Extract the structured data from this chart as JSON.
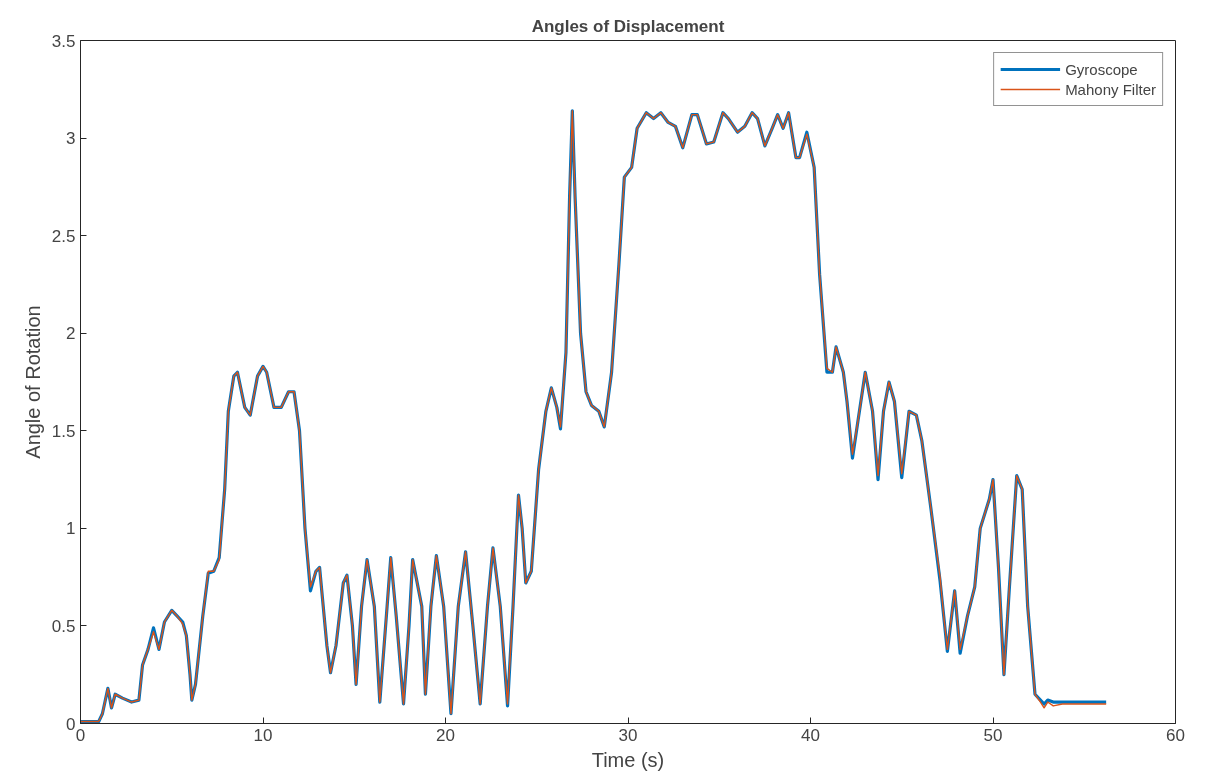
{
  "chart_data": {
    "type": "line",
    "title": "Angles of Displacement",
    "xlabel": "Time (s)",
    "ylabel": "Angle of Rotation",
    "xlim": [
      0,
      60
    ],
    "ylim": [
      0,
      3.5
    ],
    "xticks": [
      0,
      10,
      20,
      30,
      40,
      50,
      60
    ],
    "yticks": [
      0,
      0.5,
      1,
      1.5,
      2,
      2.5,
      3,
      3.5
    ],
    "grid": false,
    "legend": "top right",
    "line_style": "solid",
    "series": [
      {
        "name": "Gyroscope",
        "color": "#0072bd",
        "x": [
          0,
          1.0,
          1.2,
          1.5,
          1.7,
          1.9,
          2.3,
          2.8,
          3.2,
          3.4,
          3.7,
          4.0,
          4.3,
          4.6,
          5.0,
          5.3,
          5.6,
          5.8,
          6.0,
          6.1,
          6.3,
          6.7,
          7.0,
          7.3,
          7.6,
          7.9,
          8.1,
          8.4,
          8.6,
          9.0,
          9.3,
          9.7,
          10.0,
          10.2,
          10.6,
          11.0,
          11.4,
          11.7,
          12.0,
          12.3,
          12.6,
          12.9,
          13.1,
          13.5,
          13.7,
          14.0,
          14.4,
          14.6,
          14.9,
          15.1,
          15.4,
          15.7,
          16.1,
          16.4,
          16.8,
          17.0,
          17.3,
          17.7,
          18.0,
          18.2,
          18.7,
          18.9,
          19.2,
          19.5,
          19.9,
          20.3,
          20.7,
          21.1,
          21.5,
          21.9,
          22.3,
          22.6,
          23.0,
          23.4,
          23.7,
          24.0,
          24.2,
          24.4,
          24.7,
          25.1,
          25.5,
          25.8,
          26.1,
          26.3,
          26.6,
          26.8,
          26.95,
          27.1,
          27.4,
          27.7,
          28.0,
          28.4,
          28.7,
          29.1,
          29.5,
          29.8,
          30.2,
          30.5,
          31.0,
          31.4,
          31.8,
          32.2,
          32.6,
          33.0,
          33.5,
          33.8,
          34.3,
          34.7,
          35.2,
          35.5,
          36.0,
          36.4,
          36.8,
          37.1,
          37.5,
          37.9,
          38.2,
          38.5,
          38.8,
          39.2,
          39.4,
          39.8,
          40.2,
          40.5,
          40.9,
          41.2,
          41.4,
          41.8,
          42.0,
          42.3,
          42.6,
          43.0,
          43.4,
          43.7,
          44.0,
          44.3,
          44.6,
          45.0,
          45.4,
          45.8,
          46.1,
          46.6,
          47.1,
          47.3,
          47.5,
          47.9,
          48.2,
          48.6,
          49.0,
          49.3,
          49.8,
          50.0,
          50.3,
          50.6,
          50.9,
          51.3,
          51.6,
          51.9,
          52.3,
          52.6,
          52.8,
          53.0,
          53.3,
          53.8,
          56.2
        ],
        "values": [
          0.01,
          0.01,
          0.05,
          0.18,
          0.08,
          0.15,
          0.13,
          0.11,
          0.12,
          0.3,
          0.38,
          0.49,
          0.38,
          0.52,
          0.58,
          0.55,
          0.52,
          0.45,
          0.25,
          0.12,
          0.2,
          0.55,
          0.77,
          0.78,
          0.85,
          1.2,
          1.6,
          1.78,
          1.8,
          1.62,
          1.58,
          1.78,
          1.83,
          1.8,
          1.62,
          1.62,
          1.7,
          1.7,
          1.5,
          1.0,
          0.68,
          0.78,
          0.8,
          0.4,
          0.26,
          0.4,
          0.72,
          0.76,
          0.5,
          0.2,
          0.6,
          0.84,
          0.6,
          0.11,
          0.6,
          0.85,
          0.55,
          0.1,
          0.5,
          0.84,
          0.6,
          0.15,
          0.6,
          0.86,
          0.6,
          0.05,
          0.6,
          0.88,
          0.5,
          0.1,
          0.6,
          0.9,
          0.6,
          0.09,
          0.6,
          1.17,
          1.0,
          0.72,
          0.78,
          1.3,
          1.6,
          1.72,
          1.62,
          1.51,
          1.9,
          2.7,
          3.14,
          2.7,
          2.0,
          1.7,
          1.63,
          1.6,
          1.52,
          1.8,
          2.35,
          2.8,
          2.85,
          3.05,
          3.13,
          3.1,
          3.13,
          3.08,
          3.06,
          2.95,
          3.12,
          3.12,
          2.97,
          2.98,
          3.13,
          3.1,
          3.03,
          3.06,
          3.13,
          3.1,
          2.96,
          3.05,
          3.12,
          3.05,
          3.13,
          2.9,
          2.9,
          3.03,
          2.85,
          2.3,
          1.8,
          1.8,
          1.93,
          1.8,
          1.65,
          1.36,
          1.55,
          1.8,
          1.6,
          1.25,
          1.6,
          1.75,
          1.65,
          1.26,
          1.6,
          1.58,
          1.45,
          1.1,
          0.73,
          0.55,
          0.37,
          0.68,
          0.36,
          0.55,
          0.7,
          1.0,
          1.15,
          1.25,
          0.8,
          0.25,
          0.7,
          1.27,
          1.2,
          0.6,
          0.15,
          0.12,
          0.1,
          0.12,
          0.11,
          0.11,
          0.11
        ]
      },
      {
        "name": "Mahony Filter",
        "color": "#d95319",
        "x": [
          0,
          1.0,
          1.2,
          1.5,
          1.7,
          1.9,
          2.3,
          2.8,
          3.2,
          3.4,
          3.7,
          4.0,
          4.3,
          4.6,
          5.0,
          5.3,
          5.6,
          5.8,
          6.0,
          6.1,
          6.3,
          6.7,
          7.0,
          7.3,
          7.6,
          7.9,
          8.1,
          8.4,
          8.6,
          9.0,
          9.3,
          9.7,
          10.0,
          10.2,
          10.6,
          11.0,
          11.4,
          11.7,
          12.0,
          12.3,
          12.6,
          12.9,
          13.1,
          13.5,
          13.7,
          14.0,
          14.4,
          14.6,
          14.9,
          15.1,
          15.4,
          15.7,
          16.1,
          16.4,
          16.8,
          17.0,
          17.3,
          17.7,
          18.0,
          18.2,
          18.7,
          18.9,
          19.2,
          19.5,
          19.9,
          20.3,
          20.7,
          21.1,
          21.5,
          21.9,
          22.3,
          22.6,
          23.0,
          23.4,
          23.7,
          24.0,
          24.2,
          24.4,
          24.7,
          25.1,
          25.5,
          25.8,
          26.1,
          26.3,
          26.6,
          26.8,
          26.95,
          27.1,
          27.4,
          27.7,
          28.0,
          28.4,
          28.7,
          29.1,
          29.5,
          29.8,
          30.2,
          30.5,
          31.0,
          31.4,
          31.8,
          32.2,
          32.6,
          33.0,
          33.5,
          33.8,
          34.3,
          34.7,
          35.2,
          35.5,
          36.0,
          36.4,
          36.8,
          37.1,
          37.5,
          37.9,
          38.2,
          38.5,
          38.8,
          39.2,
          39.4,
          39.8,
          40.2,
          40.5,
          40.9,
          41.2,
          41.4,
          41.8,
          42.0,
          42.3,
          42.6,
          43.0,
          43.4,
          43.7,
          44.0,
          44.3,
          44.6,
          45.0,
          45.4,
          45.8,
          46.1,
          46.6,
          47.1,
          47.3,
          47.5,
          47.9,
          48.2,
          48.6,
          49.0,
          49.3,
          49.8,
          50.0,
          50.3,
          50.6,
          50.9,
          51.3,
          51.6,
          51.9,
          52.3,
          52.6,
          52.8,
          53.0,
          53.3,
          53.8,
          56.2
        ],
        "values": [
          0.01,
          0.01,
          0.05,
          0.18,
          0.08,
          0.15,
          0.13,
          0.11,
          0.12,
          0.3,
          0.38,
          0.47,
          0.38,
          0.52,
          0.58,
          0.55,
          0.51,
          0.45,
          0.25,
          0.12,
          0.2,
          0.55,
          0.78,
          0.78,
          0.84,
          1.2,
          1.6,
          1.78,
          1.8,
          1.62,
          1.58,
          1.78,
          1.83,
          1.8,
          1.62,
          1.62,
          1.7,
          1.7,
          1.5,
          1.0,
          0.7,
          0.78,
          0.8,
          0.4,
          0.26,
          0.4,
          0.72,
          0.76,
          0.5,
          0.2,
          0.6,
          0.84,
          0.6,
          0.11,
          0.6,
          0.85,
          0.55,
          0.1,
          0.5,
          0.84,
          0.6,
          0.15,
          0.6,
          0.86,
          0.6,
          0.05,
          0.6,
          0.88,
          0.5,
          0.1,
          0.6,
          0.9,
          0.6,
          0.1,
          0.6,
          1.17,
          1.0,
          0.72,
          0.78,
          1.3,
          1.6,
          1.72,
          1.62,
          1.52,
          1.9,
          2.7,
          3.14,
          2.7,
          2.0,
          1.7,
          1.63,
          1.6,
          1.52,
          1.8,
          2.35,
          2.8,
          2.85,
          3.05,
          3.13,
          3.1,
          3.13,
          3.08,
          3.06,
          2.95,
          3.12,
          3.12,
          2.97,
          2.98,
          3.13,
          3.1,
          3.03,
          3.06,
          3.13,
          3.1,
          2.96,
          3.05,
          3.12,
          3.05,
          3.13,
          2.9,
          2.9,
          3.02,
          2.85,
          2.3,
          1.82,
          1.8,
          1.93,
          1.8,
          1.65,
          1.38,
          1.55,
          1.8,
          1.6,
          1.27,
          1.6,
          1.75,
          1.65,
          1.28,
          1.6,
          1.58,
          1.45,
          1.1,
          0.75,
          0.55,
          0.38,
          0.68,
          0.38,
          0.55,
          0.7,
          1.0,
          1.15,
          1.25,
          0.8,
          0.25,
          0.7,
          1.27,
          1.2,
          0.6,
          0.15,
          0.11,
          0.08,
          0.11,
          0.09,
          0.1,
          0.1
        ]
      }
    ]
  }
}
